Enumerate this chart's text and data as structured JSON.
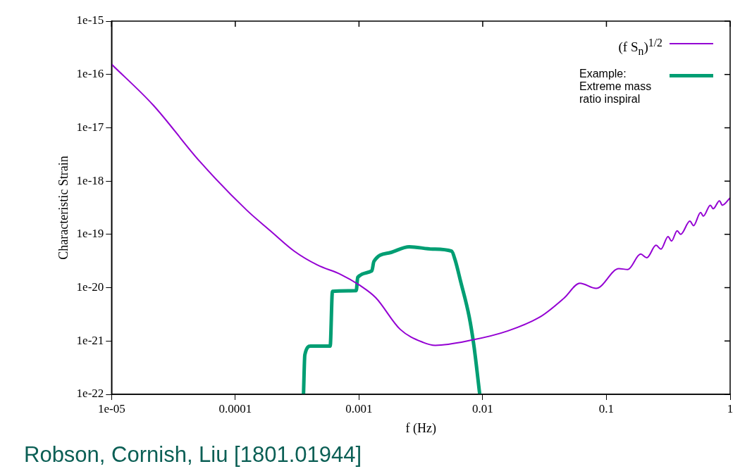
{
  "chart_data": {
    "type": "line",
    "xlabel": "f (Hz)",
    "ylabel": "Characteristic Strain",
    "log": "xy",
    "legend": "top right",
    "grid": false,
    "marker": "none",
    "line_style": "solid",
    "xlim": [
      1e-05,
      1
    ],
    "xticks": [
      1e-05,
      0.0001,
      0.001,
      0.01,
      0.1,
      1
    ],
    "ylim": [
      1e-22,
      1e-15
    ],
    "yticks": [
      1e-22,
      1e-21,
      1e-20,
      1e-19,
      1e-18,
      1e-17,
      1e-16,
      1e-15
    ],
    "annotations": [
      "Robson, Cornish, Liu [1801.01944]"
    ],
    "series": [
      {
        "name": "(f S$_{n}$)$^{1/2}$",
        "color": "#9400d3",
        "x": [
          1e-05,
          2.17e-05,
          5.16e-05,
          0.000124,
          0.000192,
          0.0003,
          0.000462,
          0.000713,
          0.00102,
          0.00137,
          0.00215,
          0.00331,
          0.00414,
          0.00798,
          0.016,
          0.0297,
          0.0457,
          0.061,
          0.0826,
          0.126,
          0.149,
          0.189,
          0.212,
          0.252,
          0.276,
          0.315,
          0.336,
          0.373,
          0.398,
          0.473,
          0.506,
          0.577,
          0.607,
          0.692,
          0.73,
          0.82,
          0.865,
          1
        ],
        "values": [
          1.55e-16,
          2.66e-17,
          2.34e-18,
          2.83e-19,
          1.17e-19,
          4.84e-20,
          2.66e-20,
          1.77e-20,
          1.1e-20,
          6.45e-21,
          1.66e-21,
          9.4e-22,
          8.3e-22,
          1.03e-21,
          1.55e-21,
          2.92e-21,
          6.45e-21,
          1.21e-20,
          9.7e-21,
          2.27e-20,
          2.2e-20,
          4.27e-20,
          3.65e-20,
          6.24e-20,
          5.3e-20,
          9.1e-20,
          7.5e-20,
          1.17e-19,
          1e-19,
          1.77e-19,
          1.46e-19,
          2.58e-19,
          2.2e-19,
          3.53e-19,
          3.02e-19,
          4.27e-19,
          3.53e-19,
          4.84e-19
        ]
      },
      {
        "name": "Example: Extreme mass ratio inspiral",
        "color": "#009e73",
        "x": [
          0.000356,
          0.000365,
          0.000406,
          0.000585,
          0.00061,
          0.00095,
          0.000977,
          0.00127,
          0.00132,
          0.00179,
          0.00255,
          0.00393,
          0.0056,
          0.00598,
          0.00664,
          0.00778,
          0.0085,
          0.00946
        ],
        "values": [
          1e-22,
          5.5e-22,
          8e-22,
          8e-22,
          8.55e-21,
          8.8e-21,
          1.56e-20,
          2.07e-20,
          3.11e-20,
          4.55e-20,
          5.85e-20,
          5.3e-20,
          4.84e-20,
          3.32e-20,
          1.29e-20,
          2.83e-21,
          8e-22,
          1e-22
        ]
      }
    ]
  }
}
